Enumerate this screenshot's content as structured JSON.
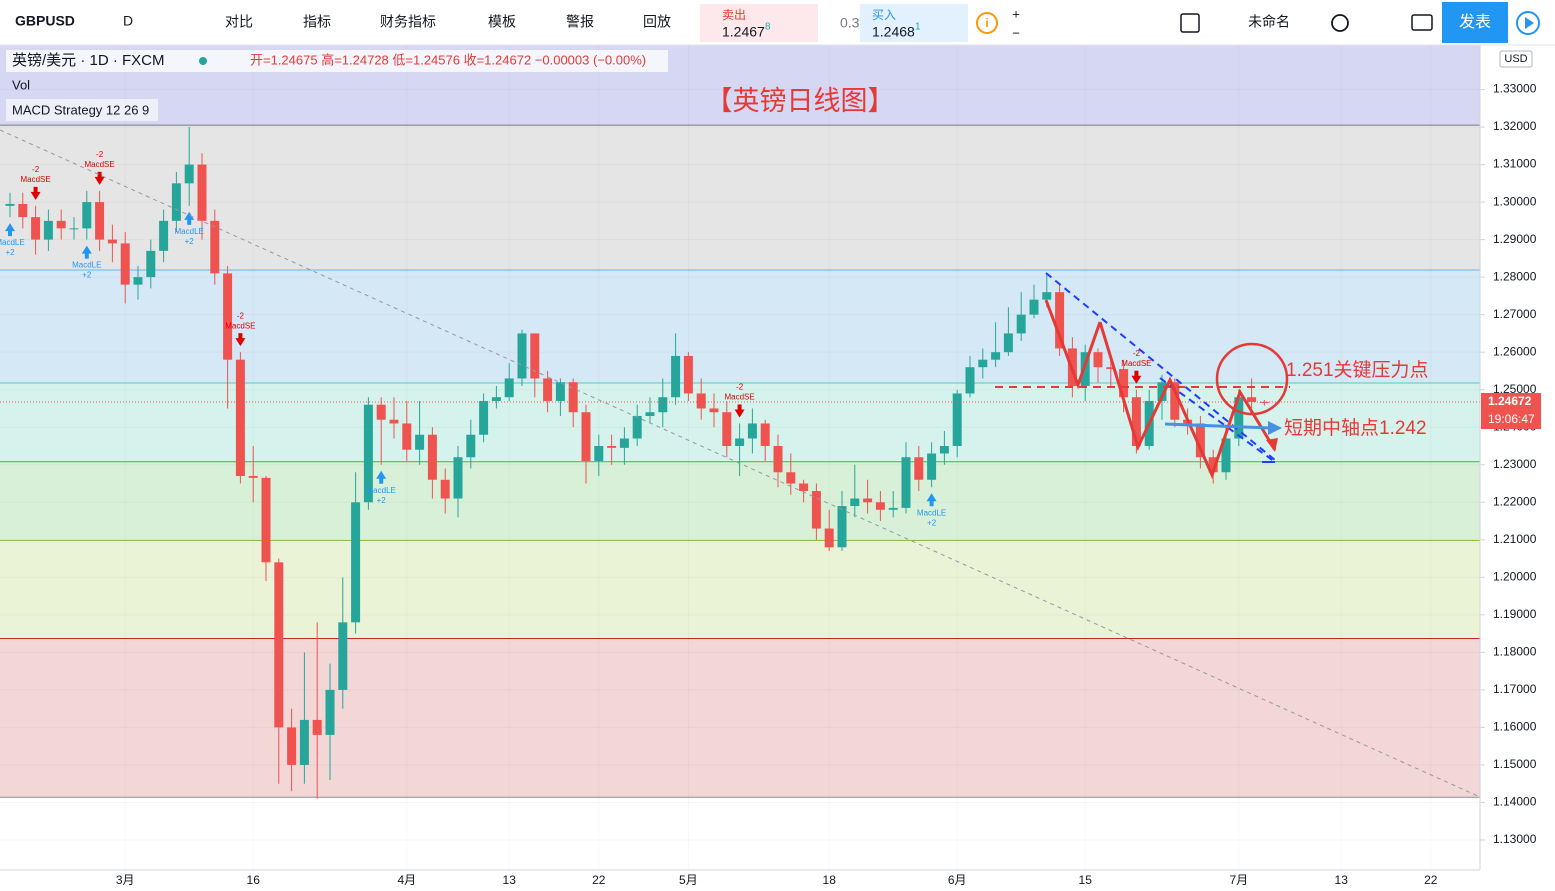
{
  "toolbar": {
    "symbol": "GBPUSD",
    "interval": "D",
    "items": [
      "对比",
      "指标",
      "财务指标",
      "模板",
      "警报",
      "回放"
    ],
    "sell_label": "卖出",
    "sell_price": "1.2467",
    "sell_pip": "8",
    "spread": "0.3",
    "buy_label": "买入",
    "buy_price": "1.2468",
    "buy_pip": "1",
    "layout_name": "未命名",
    "publish": "发表"
  },
  "chart_data": {
    "type": "candlestick",
    "title": "【英镑日线图】",
    "header": "英镑/美元 · 1D · FXCM",
    "ohlc_header": "开=1.24675  高=1.24728  低=1.24576  收=1.24672  −0.00003 (−0.00%)",
    "indicators": [
      "Vol",
      "MACD Strategy 12 26 9"
    ],
    "currency": "USD",
    "annotations": [
      "1.251关键压力点",
      "短期中轴点1.242"
    ],
    "last_price": {
      "value": 1.24672,
      "label": "1.24672"
    },
    "countdown": "19:06:47",
    "up_color": "#26a69a",
    "down_color": "#ef5350",
    "categories": [
      null,
      null,
      null,
      null,
      null,
      null,
      null,
      null,
      null,
      "3月",
      null,
      null,
      null,
      null,
      null,
      null,
      null,
      null,
      null,
      "16",
      null,
      null,
      null,
      null,
      null,
      null,
      null,
      null,
      null,
      null,
      null,
      "4月",
      null,
      null,
      null,
      null,
      null,
      null,
      null,
      "13",
      null,
      null,
      null,
      null,
      null,
      null,
      "22",
      null,
      null,
      null,
      null,
      null,
      null,
      "5月",
      null,
      null,
      null,
      null,
      null,
      null,
      null,
      null,
      null,
      null,
      "18",
      null,
      null,
      null,
      null,
      null,
      null,
      null,
      null,
      null,
      "6月",
      null,
      null,
      null,
      null,
      null,
      null,
      null,
      null,
      null,
      "15",
      null,
      null,
      null,
      null,
      null,
      null,
      null,
      null,
      null,
      null,
      null,
      "7月",
      null,
      null,
      null,
      null,
      null,
      null,
      null,
      "13",
      null,
      null,
      null,
      null,
      null,
      null,
      "22",
      null,
      null,
      null
    ],
    "open": [
      1.299,
      1.2995,
      1.296,
      1.29,
      1.295,
      1.293,
      1.293,
      1.3,
      1.29,
      1.289,
      1.278,
      1.28,
      1.287,
      1.295,
      1.305,
      1.31,
      1.295,
      1.281,
      1.258,
      1.227,
      1.2265,
      1.204,
      1.16,
      1.15,
      1.162,
      1.158,
      1.17,
      1.188,
      1.22,
      1.246,
      1.242,
      1.241,
      1.234,
      1.238,
      1.226,
      1.221,
      1.232,
      1.238,
      1.247,
      1.248,
      1.253,
      1.265,
      1.253,
      1.247,
      1.252,
      1.244,
      1.231,
      1.235,
      1.2345,
      1.237,
      1.243,
      1.244,
      1.248,
      1.259,
      1.249,
      1.245,
      1.244,
      1.235,
      1.237,
      1.241,
      1.235,
      1.228,
      1.225,
      1.223,
      1.213,
      1.208,
      1.219,
      1.221,
      1.22,
      1.218,
      1.2185,
      1.232,
      1.226,
      1.233,
      1.235,
      1.249,
      1.256,
      1.258,
      1.26,
      1.265,
      1.27,
      1.274,
      1.276,
      1.261,
      1.251,
      1.26,
      1.256,
      1.2555,
      1.248,
      1.235,
      1.247,
      1.252,
      1.242,
      1.241,
      1.232,
      1.228,
      1.237,
      1.248,
      1.24675,
      null,
      null,
      null,
      null,
      null,
      null,
      null,
      null,
      null,
      null,
      null,
      null,
      null,
      null,
      null,
      null
    ],
    "high": [
      1.3025,
      1.3025,
      1.299,
      1.298,
      1.298,
      1.296,
      1.303,
      1.303,
      1.294,
      1.292,
      1.283,
      1.29,
      1.298,
      1.308,
      1.32,
      1.313,
      1.298,
      1.283,
      1.26,
      1.235,
      1.227,
      1.205,
      1.165,
      1.18,
      1.188,
      1.177,
      1.2,
      1.228,
      1.248,
      1.248,
      1.248,
      1.247,
      1.247,
      1.24,
      1.229,
      1.235,
      1.242,
      1.249,
      1.251,
      1.257,
      1.266,
      1.265,
      1.255,
      1.253,
      1.253,
      1.246,
      1.238,
      1.238,
      1.24,
      1.246,
      1.248,
      1.253,
      1.265,
      1.26,
      1.253,
      1.249,
      1.247,
      1.241,
      1.245,
      1.242,
      1.238,
      1.233,
      1.226,
      1.225,
      1.218,
      1.223,
      1.23,
      1.226,
      1.223,
      1.223,
      1.236,
      1.235,
      1.236,
      1.239,
      1.25,
      1.259,
      1.261,
      1.268,
      1.272,
      1.276,
      1.278,
      1.281,
      1.278,
      1.264,
      1.262,
      1.261,
      1.258,
      1.258,
      1.25,
      1.25,
      1.254,
      1.253,
      1.245,
      1.243,
      1.234,
      1.24,
      1.25,
      1.253,
      1.24728,
      null,
      null,
      null,
      null,
      null,
      null,
      null,
      null,
      null,
      null,
      null,
      null,
      null,
      null,
      null,
      null
    ],
    "low": [
      1.296,
      1.293,
      1.286,
      1.287,
      1.29,
      1.29,
      1.29,
      1.287,
      1.284,
      1.273,
      1.274,
      1.277,
      1.284,
      1.292,
      1.299,
      1.29,
      1.278,
      1.245,
      1.225,
      1.22,
      1.199,
      1.145,
      1.143,
      1.145,
      1.141,
      1.146,
      1.165,
      1.185,
      1.218,
      1.23,
      1.237,
      1.231,
      1.23,
      1.221,
      1.217,
      1.216,
      1.229,
      1.236,
      1.245,
      1.247,
      1.251,
      1.248,
      1.244,
      1.243,
      1.24,
      1.225,
      1.227,
      1.23,
      1.23,
      1.235,
      1.241,
      1.24,
      1.246,
      1.247,
      1.242,
      1.24,
      1.232,
      1.227,
      1.233,
      1.231,
      1.224,
      1.222,
      1.22,
      1.21,
      1.207,
      1.207,
      1.216,
      1.217,
      1.215,
      1.216,
      1.217,
      1.223,
      1.224,
      1.23,
      1.232,
      1.248,
      1.253,
      1.256,
      1.259,
      1.263,
      1.269,
      1.272,
      1.259,
      1.248,
      1.247,
      1.252,
      1.251,
      1.244,
      1.233,
      1.234,
      1.242,
      1.24,
      1.238,
      1.229,
      1.225,
      1.226,
      1.235,
      1.245,
      1.24576,
      null,
      null,
      null,
      null,
      null,
      null,
      null,
      null,
      null,
      null,
      null,
      null,
      null,
      null,
      null,
      null
    ],
    "close": [
      1.2995,
      1.296,
      1.29,
      1.295,
      1.293,
      1.293,
      1.3,
      1.29,
      1.289,
      1.278,
      1.28,
      1.287,
      1.295,
      1.305,
      1.31,
      1.295,
      1.281,
      1.258,
      1.227,
      1.2265,
      1.204,
      1.16,
      1.15,
      1.162,
      1.158,
      1.17,
      1.188,
      1.22,
      1.246,
      1.242,
      1.241,
      1.234,
      1.238,
      1.226,
      1.221,
      1.232,
      1.238,
      1.247,
      1.248,
      1.253,
      1.265,
      1.253,
      1.247,
      1.252,
      1.244,
      1.231,
      1.235,
      1.2345,
      1.237,
      1.243,
      1.244,
      1.248,
      1.259,
      1.249,
      1.245,
      1.244,
      1.235,
      1.237,
      1.241,
      1.235,
      1.228,
      1.225,
      1.223,
      1.213,
      1.208,
      1.219,
      1.221,
      1.22,
      1.218,
      1.2185,
      1.232,
      1.226,
      1.233,
      1.235,
      1.249,
      1.256,
      1.258,
      1.26,
      1.265,
      1.27,
      1.274,
      1.276,
      1.261,
      1.251,
      1.26,
      1.256,
      1.2555,
      1.248,
      1.235,
      1.247,
      1.252,
      1.242,
      1.241,
      1.232,
      1.228,
      1.237,
      1.248,
      1.24675,
      1.24672,
      null,
      null,
      null,
      null,
      null,
      null,
      null,
      null,
      null,
      null,
      null,
      null,
      null,
      null,
      null,
      null
    ],
    "signals": [
      {
        "at": 2,
        "label": "MacdSE",
        "qty": "-2"
      },
      {
        "at": 0,
        "label": "MacdLE",
        "qty": "+2"
      },
      {
        "at": 6,
        "label": "MacdLE",
        "qty": "+2"
      },
      {
        "at": 7,
        "label": "MacdSE",
        "qty": "-2"
      },
      {
        "at": 14,
        "label": "MacdLE",
        "qty": "+2"
      },
      {
        "at": 18,
        "label": "MacdSE",
        "qty": "-2"
      },
      {
        "at": 29,
        "label": "MacdLE",
        "qty": "+2"
      },
      {
        "at": 57,
        "label": "MacdSE",
        "qty": "-2"
      },
      {
        "at": 72,
        "label": "MacdLE",
        "qty": "+2"
      },
      {
        "at": 88,
        "label": "MacdSE",
        "qty": "-2"
      }
    ],
    "top_fill": "#d6d7f3",
    "levels": [
      {
        "value": 1.3205,
        "color": "#787b86",
        "fill": "#e5e5e5"
      },
      {
        "value": 1.2819,
        "color": "#64b5f6",
        "fill": "#d5e8f5"
      },
      {
        "value": 1.2518,
        "color": "#4dd0b5",
        "fill": "#d5f2ec"
      },
      {
        "value": 1.2308,
        "color": "#4caf50",
        "fill": "#d8f0d8"
      },
      {
        "value": 1.2098,
        "color": "#8bc34a",
        "fill": "#ebf3d6"
      },
      {
        "value": 1.1837,
        "color": "#c62828",
        "fill": "#f3d6d6"
      },
      {
        "value": 1.1414,
        "color": "#8f8f8f",
        "fill": "#ffffff"
      }
    ],
    "ylim": [
      1.122,
      1.34
    ],
    "yticks": [
      {
        "value": 1.13,
        "label": "1.13000"
      },
      {
        "value": 1.14,
        "label": "1.14000"
      },
      {
        "value": 1.15,
        "label": "1.15000"
      },
      {
        "value": 1.16,
        "label": "1.16000"
      },
      {
        "value": 1.17,
        "label": "1.17000"
      },
      {
        "value": 1.18,
        "label": "1.18000"
      },
      {
        "value": 1.19,
        "label": "1.19000"
      },
      {
        "value": 1.2,
        "label": "1.20000"
      },
      {
        "value": 1.21,
        "label": "1.21000"
      },
      {
        "value": 1.22,
        "label": "1.22000"
      },
      {
        "value": 1.23,
        "label": "1.23000"
      },
      {
        "value": 1.24,
        "label": "1.24000"
      },
      {
        "value": 1.25,
        "label": "1.25000"
      },
      {
        "value": 1.26,
        "label": "1.26000"
      },
      {
        "value": 1.27,
        "label": "1.27000"
      },
      {
        "value": 1.28,
        "label": "1.28000"
      },
      {
        "value": 1.29,
        "label": "1.29000"
      },
      {
        "value": 1.3,
        "label": "1.30000"
      },
      {
        "value": 1.31,
        "label": "1.31000"
      },
      {
        "value": 1.32,
        "label": "1.32000"
      },
      {
        "value": 1.33,
        "label": "1.33000"
      }
    ],
    "grid": true
  }
}
